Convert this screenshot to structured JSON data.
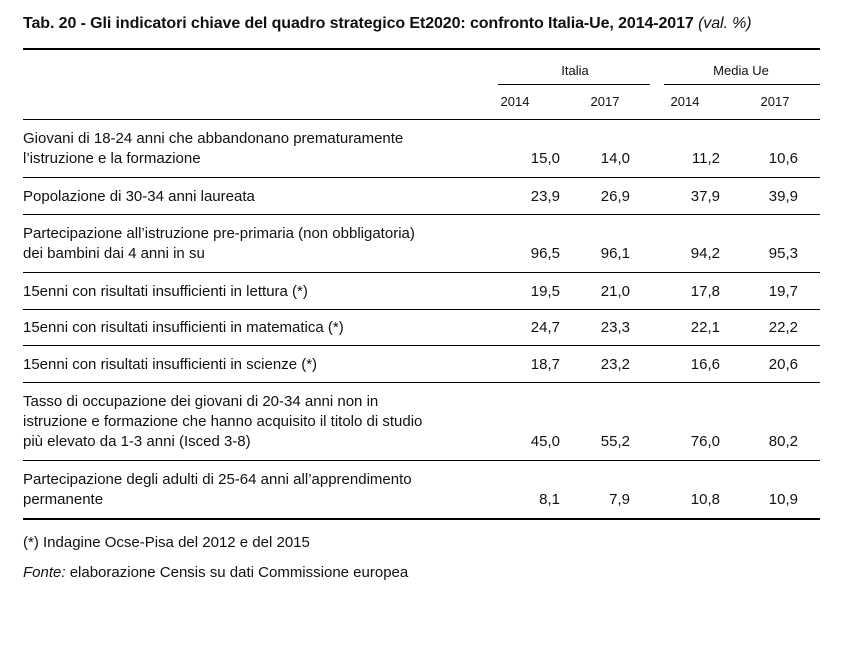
{
  "title": {
    "main": "Tab. 20 - Gli indicatori chiave del quadro strategico Et2020: confronto Italia-Ue, 2014-2017",
    "note": "(val. %)"
  },
  "header": {
    "groups": [
      "Italia",
      "Media Ue"
    ],
    "years": [
      "2014",
      "2017",
      "2014",
      "2017"
    ]
  },
  "rows": [
    {
      "lines": [
        "Giovani di 18-24 anni che abbandonano prematuramente",
        "l’istruzione e la formazione"
      ],
      "values": [
        "15,0",
        "14,0",
        "11,2",
        "10,6"
      ]
    },
    {
      "lines": [
        "Popolazione di 30-34 anni laureata"
      ],
      "values": [
        "23,9",
        "26,9",
        "37,9",
        "39,9"
      ]
    },
    {
      "lines": [
        "Partecipazione all’istruzione pre-primaria (non obbligatoria)",
        "dei bambini dai 4 anni in su"
      ],
      "values": [
        "96,5",
        "96,1",
        "94,2",
        "95,3"
      ]
    },
    {
      "lines": [
        "15enni con risultati insufficienti in lettura (*)"
      ],
      "values": [
        "19,5",
        "21,0",
        "17,8",
        "19,7"
      ]
    },
    {
      "lines": [
        "15enni con risultati insufficienti in matematica (*)"
      ],
      "values": [
        "24,7",
        "23,3",
        "22,1",
        "22,2"
      ]
    },
    {
      "lines": [
        "15enni con risultati insufficienti in scienze (*)"
      ],
      "values": [
        "18,7",
        "23,2",
        "16,6",
        "20,6"
      ]
    },
    {
      "lines": [
        "Tasso di occupazione dei giovani di 20-34 anni non in",
        "istruzione e formazione che hanno acquisito il titolo di studio",
        "più elevato da 1-3 anni (Isced 3-8)"
      ],
      "values": [
        "45,0",
        "55,2",
        "76,0",
        "80,2"
      ]
    },
    {
      "lines": [
        "Partecipazione degli adulti di 25-64 anni all’apprendimento",
        "permanente"
      ],
      "values": [
        "8,1",
        "7,9",
        "10,8",
        "10,9"
      ]
    }
  ],
  "footnotes": {
    "note": "(*) Indagine Ocse-Pisa del 2012 e del 2015",
    "source_label": "Fonte:",
    "source_text": " elaborazione Censis su dati Commissione europea"
  }
}
